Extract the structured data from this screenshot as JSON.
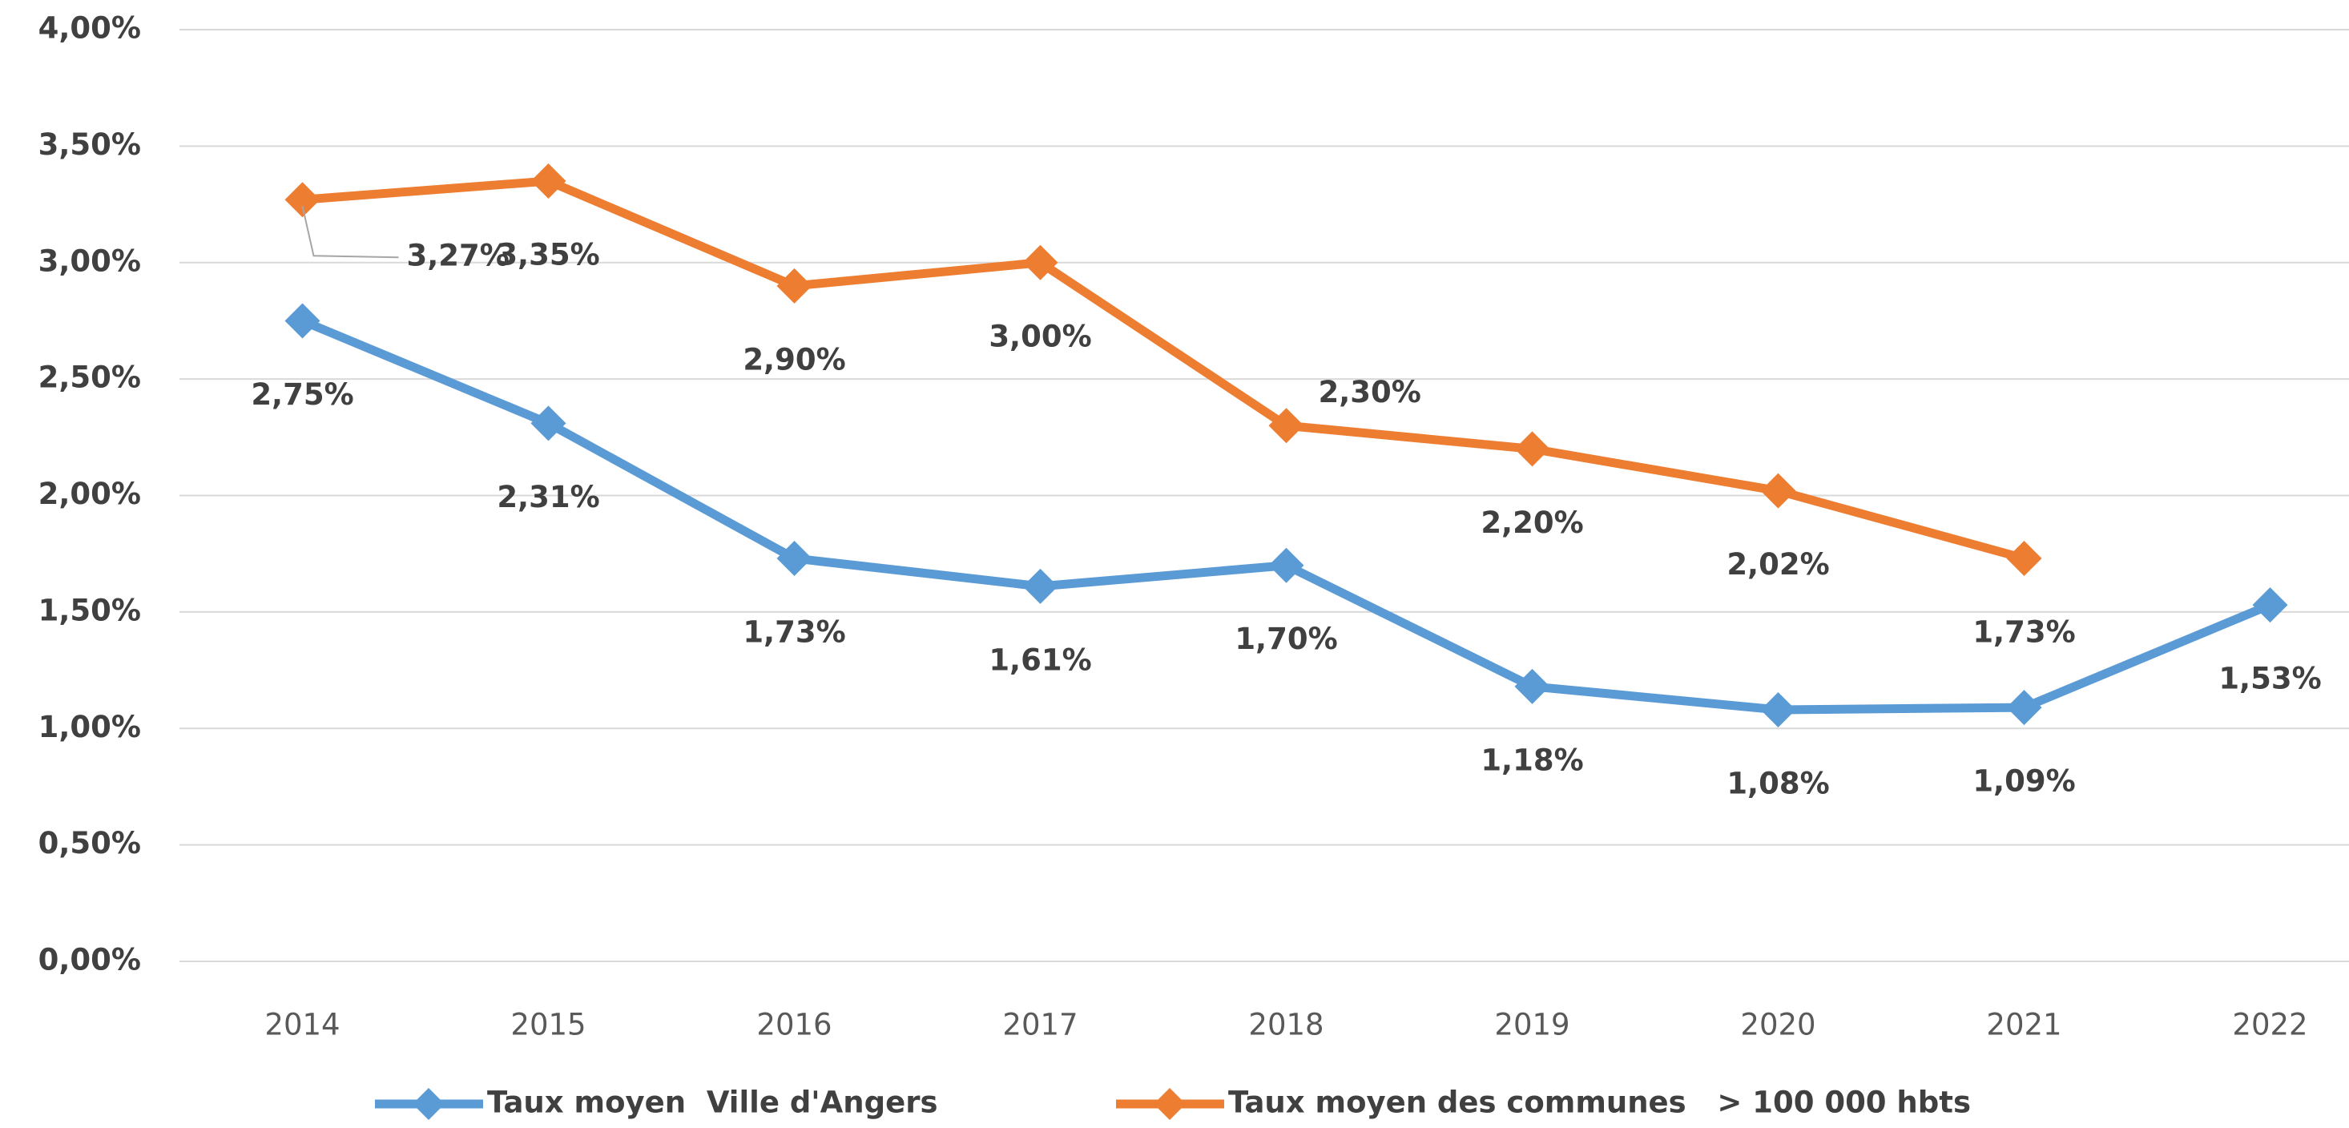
{
  "chart_data": {
    "type": "line",
    "categories": [
      "2014",
      "2015",
      "2016",
      "2017",
      "2018",
      "2019",
      "2020",
      "2021",
      "2022"
    ],
    "series": [
      {
        "name": "Taux moyen  Ville d'Angers",
        "color": "#5b9bd5",
        "values": [
          2.75,
          2.31,
          1.73,
          1.61,
          1.7,
          1.18,
          1.08,
          1.09,
          1.53
        ],
        "value_labels": [
          "2,75%",
          "2,31%",
          "1,73%",
          "1,61%",
          "1,70%",
          "1,18%",
          "1,08%",
          "1,09%",
          "1,53%"
        ]
      },
      {
        "name": "Taux moyen des communes   > 100 000 hbts",
        "color": "#ed7d31",
        "values": [
          3.27,
          3.35,
          2.9,
          3.0,
          2.3,
          2.2,
          2.02,
          1.73,
          null
        ],
        "value_labels": [
          "3,27%",
          "3,35%",
          "2,90%",
          "3,00%",
          "2,30%",
          "2,20%",
          "2,02%",
          "1,73%",
          null
        ]
      }
    ],
    "ylim": [
      0,
      4
    ],
    "yticks": [
      {
        "value": 0,
        "label": "0,00%"
      },
      {
        "value": 0.5,
        "label": "0,50%"
      },
      {
        "value": 1,
        "label": "1,00%"
      },
      {
        "value": 1.5,
        "label": "1,50%"
      },
      {
        "value": 2,
        "label": "2,00%"
      },
      {
        "value": 2.5,
        "label": "2,50%"
      },
      {
        "value": 3,
        "label": "3,00%"
      },
      {
        "value": 3.5,
        "label": "3,50%"
      },
      {
        "value": 4,
        "label": "4,00%"
      }
    ],
    "grid": true,
    "legend": "bottom"
  }
}
